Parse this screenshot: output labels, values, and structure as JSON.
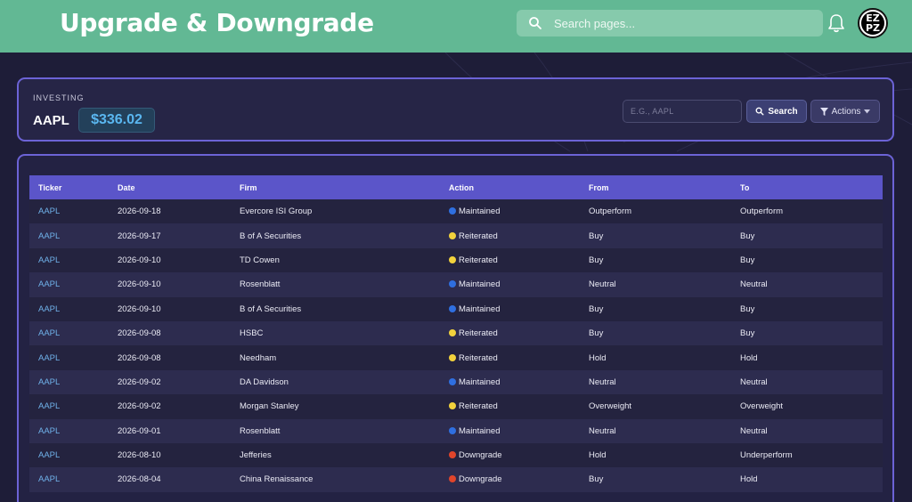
{
  "header": {
    "title": "Upgrade & Downgrade",
    "search_placeholder": "Search pages...",
    "avatar_line1": "EZ",
    "avatar_line2": "PZ"
  },
  "summary": {
    "section_label": "INVESTING",
    "ticker": "AAPL",
    "price": "$336.02",
    "ticker_placeholder": "E.G., AAPL",
    "search_button": "Search",
    "actions_button": "Actions"
  },
  "colors": {
    "header_bg": "#62b894",
    "accent": "#6c63d6",
    "maintained": "#2f6fe0",
    "reiterated": "#f2d23c",
    "downgrade": "#e0452b"
  },
  "table": {
    "columns": [
      "Ticker",
      "Date",
      "Firm",
      "Action",
      "From",
      "To"
    ],
    "rows": [
      {
        "ticker": "AAPL",
        "date": "2026-09-18",
        "firm": "Evercore ISI Group",
        "action": "Maintained",
        "action_type": "maintained",
        "from": "Outperform",
        "to": "Outperform"
      },
      {
        "ticker": "AAPL",
        "date": "2026-09-17",
        "firm": "B of A Securities",
        "action": "Reiterated",
        "action_type": "reiterated",
        "from": "Buy",
        "to": "Buy"
      },
      {
        "ticker": "AAPL",
        "date": "2026-09-10",
        "firm": "TD Cowen",
        "action": "Reiterated",
        "action_type": "reiterated",
        "from": "Buy",
        "to": "Buy"
      },
      {
        "ticker": "AAPL",
        "date": "2026-09-10",
        "firm": "Rosenblatt",
        "action": "Maintained",
        "action_type": "maintained",
        "from": "Neutral",
        "to": "Neutral"
      },
      {
        "ticker": "AAPL",
        "date": "2026-09-10",
        "firm": "B of A Securities",
        "action": "Maintained",
        "action_type": "maintained",
        "from": "Buy",
        "to": "Buy"
      },
      {
        "ticker": "AAPL",
        "date": "2026-09-08",
        "firm": "HSBC",
        "action": "Reiterated",
        "action_type": "reiterated",
        "from": "Buy",
        "to": "Buy"
      },
      {
        "ticker": "AAPL",
        "date": "2026-09-08",
        "firm": "Needham",
        "action": "Reiterated",
        "action_type": "reiterated",
        "from": "Hold",
        "to": "Hold"
      },
      {
        "ticker": "AAPL",
        "date": "2026-09-02",
        "firm": "DA Davidson",
        "action": "Maintained",
        "action_type": "maintained",
        "from": "Neutral",
        "to": "Neutral"
      },
      {
        "ticker": "AAPL",
        "date": "2026-09-02",
        "firm": "Morgan Stanley",
        "action": "Reiterated",
        "action_type": "reiterated",
        "from": "Overweight",
        "to": "Overweight"
      },
      {
        "ticker": "AAPL",
        "date": "2026-09-01",
        "firm": "Rosenblatt",
        "action": "Maintained",
        "action_type": "maintained",
        "from": "Neutral",
        "to": "Neutral"
      },
      {
        "ticker": "AAPL",
        "date": "2026-08-10",
        "firm": "Jefferies",
        "action": "Downgrade",
        "action_type": "downgrade",
        "from": "Hold",
        "to": "Underperform"
      },
      {
        "ticker": "AAPL",
        "date": "2026-08-04",
        "firm": "China Renaissance",
        "action": "Downgrade",
        "action_type": "downgrade",
        "from": "Buy",
        "to": "Hold"
      }
    ]
  }
}
